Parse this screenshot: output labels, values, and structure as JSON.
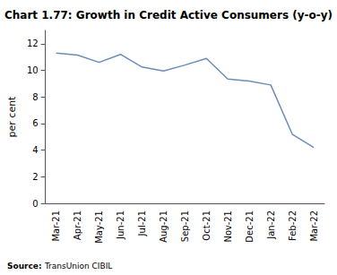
{
  "chart_data": {
    "type": "line",
    "title": "Chart 1.77: Growth in Credit Active Consumers (y-o-y)",
    "ylabel": "per cent",
    "categories": [
      "Mar-21",
      "Apr-21",
      "May-21",
      "Jun-21",
      "Jul-21",
      "Aug-21",
      "Sep-21",
      "Oct-21",
      "Nov-21",
      "Dec-21",
      "Jan-22",
      "Feb-22",
      "Mar-22"
    ],
    "values": [
      11.3,
      11.15,
      10.6,
      11.2,
      10.25,
      9.95,
      10.4,
      10.9,
      9.35,
      9.2,
      8.9,
      5.2,
      4.2
    ],
    "color": "#6b8cba",
    "ylim": [
      0,
      13
    ],
    "yticks": [
      0,
      2,
      4,
      6,
      8,
      10,
      12
    ],
    "grid": false,
    "annotations": [
      {
        "text": "Source:"
      },
      {
        "text": "TransUnion CIBIL",
        "color": "#4472c4"
      }
    ]
  }
}
